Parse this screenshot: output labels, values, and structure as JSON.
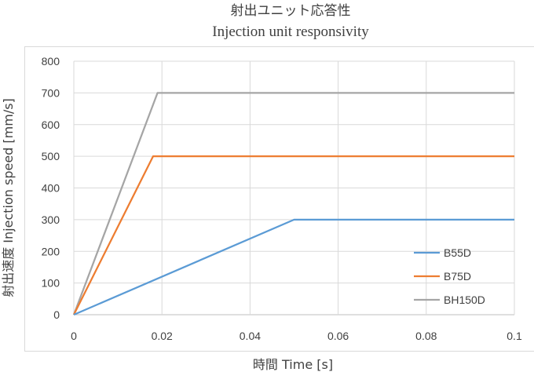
{
  "chart_data": {
    "type": "line",
    "title": "射出ユニット応答性",
    "subtitle": "Injection unit responsivity",
    "xlabel": "時間 Time [s]",
    "ylabel": "射出速度 Injection speed [mm/s]",
    "xlim": [
      0,
      0.1
    ],
    "ylim": [
      0,
      800
    ],
    "x_ticks": [
      "0",
      "0.02",
      "0.04",
      "0.06",
      "0.08",
      "0.1"
    ],
    "y_ticks": [
      "0",
      "100",
      "200",
      "300",
      "400",
      "500",
      "600",
      "700",
      "800"
    ],
    "x_tick_values": [
      0,
      0.02,
      0.04,
      0.06,
      0.08,
      0.1
    ],
    "y_tick_values": [
      0,
      100,
      200,
      300,
      400,
      500,
      600,
      700,
      800
    ],
    "grid": true,
    "legend_position": "bottom-right",
    "series": [
      {
        "name": "B55D",
        "color": "#5b9bd5",
        "x": [
          0,
          0.05,
          0.1
        ],
        "y": [
          0,
          300,
          300
        ]
      },
      {
        "name": "B75D",
        "color": "#ed7d31",
        "x": [
          0,
          0.018,
          0.1
        ],
        "y": [
          0,
          500,
          500
        ]
      },
      {
        "name": "BH150D",
        "color": "#a5a5a5",
        "x": [
          0,
          0.019,
          0.1
        ],
        "y": [
          0,
          700,
          700
        ]
      }
    ]
  }
}
